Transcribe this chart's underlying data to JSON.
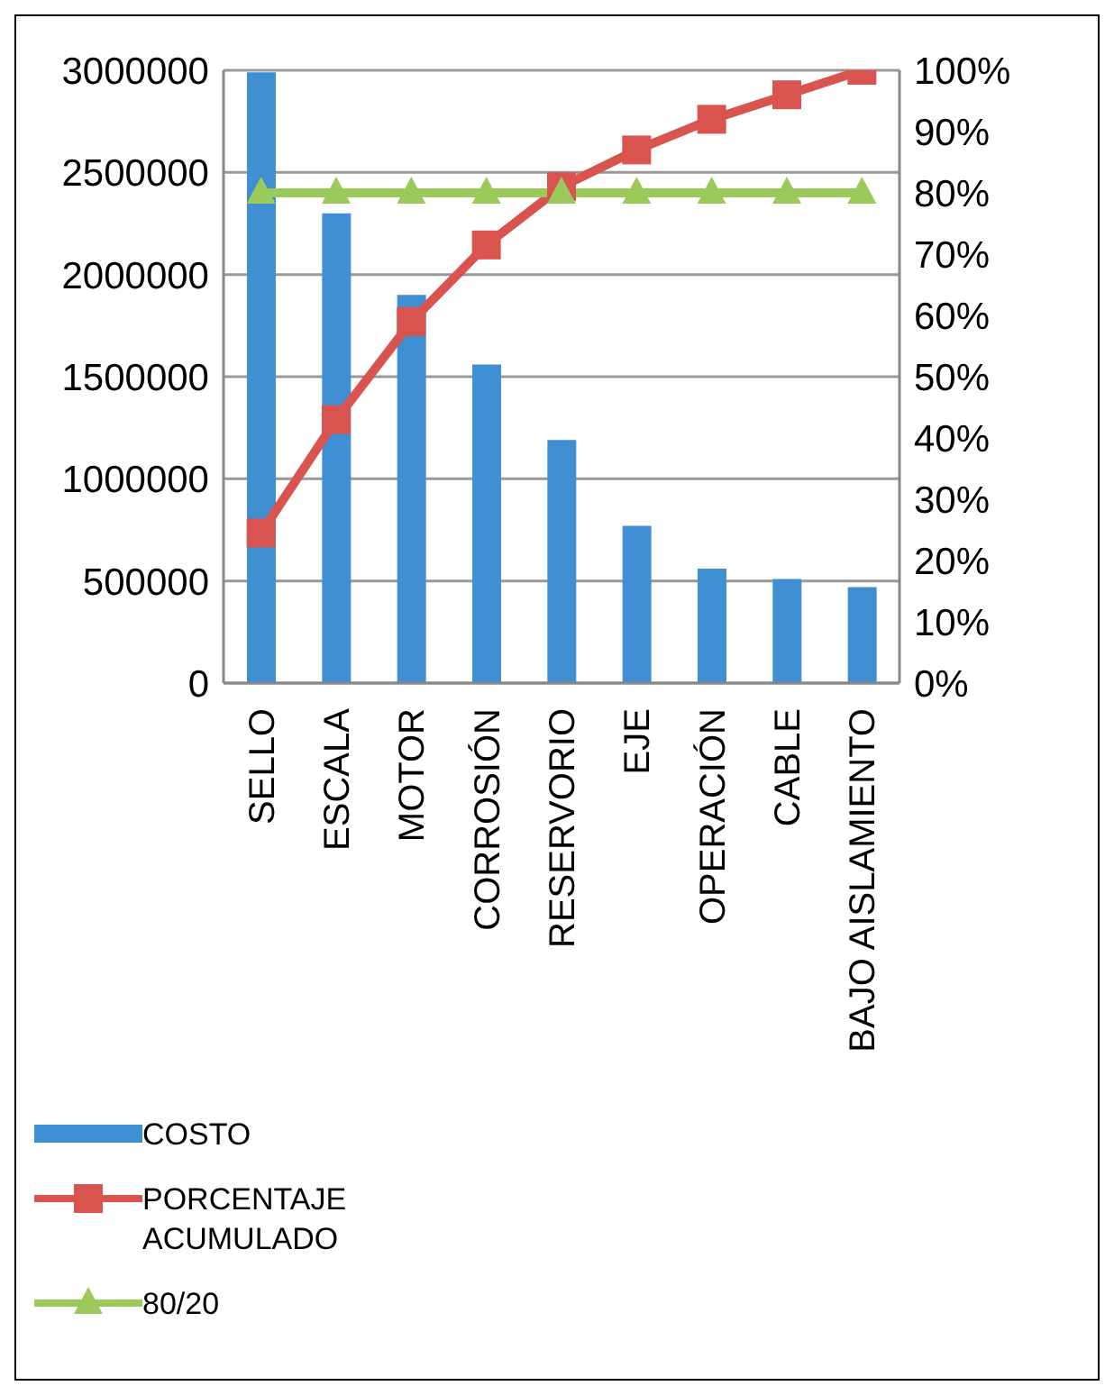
{
  "chart_data": {
    "type": "bar",
    "categories": [
      "SELLO",
      "ESCALA",
      "MOTOR",
      "CORROSIÓN",
      "RESERVORIO",
      "EJE",
      "OPERACIÓN",
      "CABLE",
      "BAJO AISLAMIENTO"
    ],
    "series": [
      {
        "name": "COSTO",
        "color": "#3f8fd2",
        "values": [
          2990000,
          2300000,
          1900000,
          1560000,
          1190000,
          770000,
          560000,
          510000,
          470000
        ]
      },
      {
        "name": "PORCENTAJE ACUMULADO",
        "type": "line",
        "axis": "y2",
        "marker": "square",
        "color": "#d9534f",
        "values": [
          24.5,
          43,
          59,
          71.5,
          81,
          87,
          92,
          96,
          100
        ]
      },
      {
        "name": "80/20",
        "type": "line",
        "axis": "y2",
        "marker": "triangle",
        "color": "#9bc95a",
        "values": [
          80,
          80,
          80,
          80,
          80,
          80,
          80,
          80,
          80
        ]
      }
    ],
    "ylim": [
      0,
      3000000
    ],
    "yticks": [
      0,
      500000,
      1000000,
      1500000,
      2000000,
      2500000,
      3000000
    ],
    "y2lim": [
      0,
      100
    ],
    "y2ticks": [
      {
        "value": 0,
        "label": "0%"
      },
      {
        "value": 10,
        "label": "10%"
      },
      {
        "value": 20,
        "label": "20%"
      },
      {
        "value": 30,
        "label": "30%"
      },
      {
        "value": 40,
        "label": "40%"
      },
      {
        "value": 50,
        "label": "50%"
      },
      {
        "value": 60,
        "label": "60%"
      },
      {
        "value": 70,
        "label": "70%"
      },
      {
        "value": 80,
        "label": "80%"
      },
      {
        "value": 90,
        "label": "90%"
      },
      {
        "value": 100,
        "label": "100%"
      }
    ],
    "grid": "y",
    "legend": "bottom left"
  }
}
